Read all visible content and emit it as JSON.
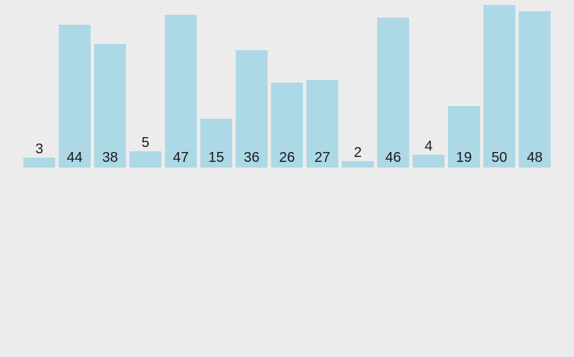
{
  "canvas": {
    "background_color": "#ececec"
  },
  "chart_data": {
    "type": "bar",
    "values": [
      3,
      44,
      38,
      5,
      47,
      15,
      36,
      26,
      27,
      2,
      46,
      4,
      19,
      50,
      48
    ],
    "data_labels": [
      "3",
      "44",
      "38",
      "5",
      "47",
      "15",
      "36",
      "26",
      "27",
      "2",
      "46",
      "4",
      "19",
      "50",
      "48"
    ],
    "title": "",
    "xlabel": "",
    "ylabel": "",
    "ylim": [
      0,
      50
    ],
    "grid": false,
    "axes_visible": false,
    "legend": false,
    "bar_color": "#add8e6",
    "label_color": "#1a1a1a",
    "label_placement": "inside base of tall bars, above short bars"
  }
}
